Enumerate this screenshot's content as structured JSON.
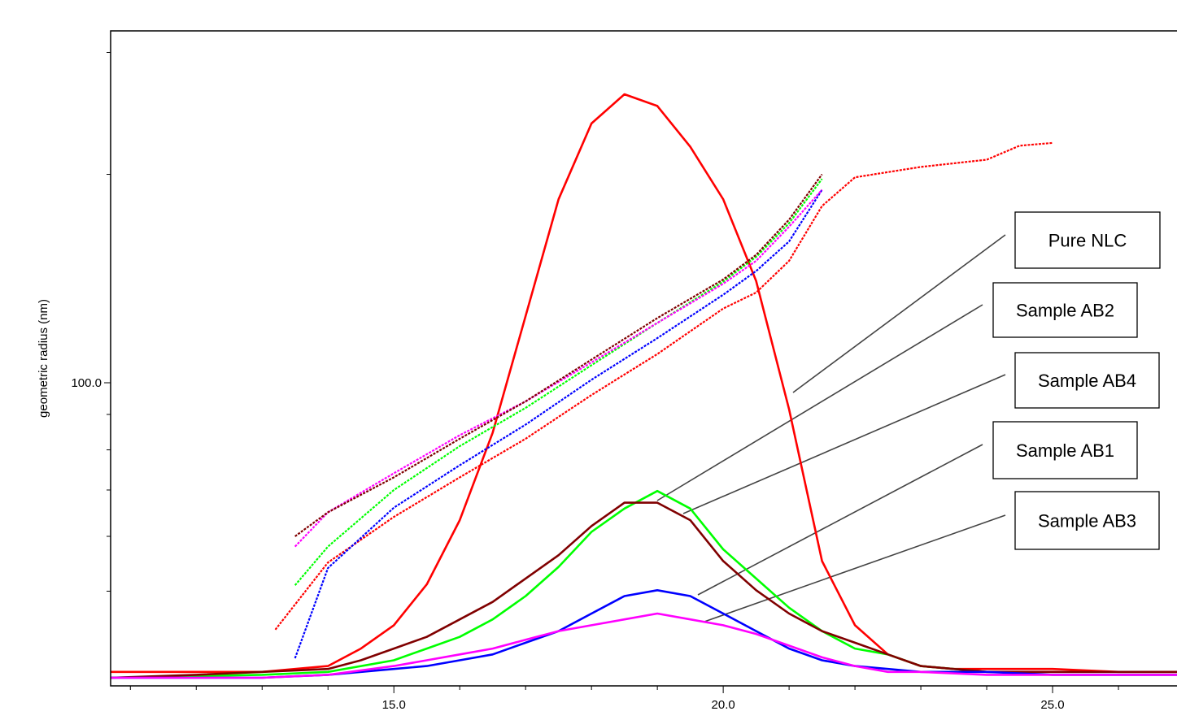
{
  "chart_data": {
    "type": "line",
    "title": "",
    "xlabel": "",
    "ylabel": "geometric radius (nm)",
    "xlim": [
      10.7,
      27.0
    ],
    "x_ticks": [
      {
        "value": 15.0,
        "label": "15.0"
      },
      {
        "value": 20.0,
        "label": "20.0"
      },
      {
        "value": 25.0,
        "label": "25.0"
      }
    ],
    "y_ticks": [
      {
        "value": 100.0,
        "label": "100.0"
      }
    ],
    "y_scale": "log",
    "grid": false,
    "legend": [
      {
        "label": "Pure NLC"
      },
      {
        "label": "Sample AB2"
      },
      {
        "label": "Sample AB4"
      },
      {
        "label": "Sample AB1"
      },
      {
        "label": "Sample AB3"
      }
    ],
    "series": [
      {
        "kind": "signal",
        "color": "#ff0000",
        "x": [
          10.7,
          13.0,
          14.0,
          14.5,
          15.0,
          15.5,
          16.0,
          16.5,
          17.0,
          17.5,
          18.0,
          18.5,
          19.0,
          19.5,
          20.0,
          20.5,
          21.0,
          21.5,
          22.0,
          22.5,
          23.0,
          23.5,
          24.0,
          25.0,
          26.0,
          27.0
        ],
        "y": [
          0.01,
          0.01,
          0.02,
          0.05,
          0.09,
          0.16,
          0.27,
          0.42,
          0.62,
          0.82,
          0.95,
          1.0,
          0.98,
          0.91,
          0.82,
          0.68,
          0.46,
          0.2,
          0.09,
          0.04,
          0.02,
          0.015,
          0.015,
          0.015,
          0.01,
          0.01
        ]
      },
      {
        "kind": "signal",
        "color": "#00ff00",
        "x": [
          10.7,
          13.0,
          14.0,
          15.0,
          15.5,
          16.0,
          16.5,
          17.0,
          17.5,
          18.0,
          18.5,
          19.0,
          19.5,
          20.0,
          20.5,
          21.0,
          21.5,
          22.0,
          22.5,
          23.0,
          24.0,
          25.0,
          27.0
        ],
        "y": [
          0.0,
          0.005,
          0.01,
          0.03,
          0.05,
          0.07,
          0.1,
          0.14,
          0.19,
          0.25,
          0.29,
          0.32,
          0.29,
          0.22,
          0.17,
          0.12,
          0.08,
          0.05,
          0.04,
          0.02,
          0.01,
          0.01,
          0.01
        ]
      },
      {
        "kind": "signal",
        "color": "#800000",
        "x": [
          10.7,
          12.0,
          13.0,
          14.0,
          14.5,
          15.0,
          15.5,
          16.0,
          16.5,
          17.0,
          17.5,
          18.0,
          18.5,
          19.0,
          19.5,
          20.0,
          20.5,
          21.0,
          21.5,
          22.0,
          22.5,
          23.0,
          24.0,
          25.0,
          27.0
        ],
        "y": [
          0.0,
          0.005,
          0.01,
          0.015,
          0.03,
          0.05,
          0.07,
          0.1,
          0.13,
          0.17,
          0.21,
          0.26,
          0.3,
          0.3,
          0.27,
          0.2,
          0.15,
          0.11,
          0.08,
          0.06,
          0.04,
          0.02,
          0.01,
          0.01,
          0.01
        ]
      },
      {
        "kind": "signal",
        "color": "#0000ff",
        "x": [
          10.7,
          13.0,
          14.0,
          15.0,
          15.5,
          16.0,
          16.5,
          17.0,
          17.5,
          18.0,
          18.5,
          19.0,
          19.5,
          20.0,
          20.5,
          21.0,
          21.5,
          22.0,
          22.5,
          23.0,
          24.0,
          25.0,
          27.0
        ],
        "y": [
          0.0,
          0.0,
          0.005,
          0.015,
          0.02,
          0.03,
          0.04,
          0.06,
          0.08,
          0.11,
          0.14,
          0.15,
          0.14,
          0.11,
          0.08,
          0.05,
          0.03,
          0.02,
          0.015,
          0.01,
          0.01,
          0.005,
          0.005
        ]
      },
      {
        "kind": "signal",
        "color": "#ff00ff",
        "x": [
          10.7,
          13.0,
          14.0,
          15.0,
          15.5,
          16.0,
          16.5,
          17.0,
          17.5,
          18.0,
          18.5,
          19.0,
          19.5,
          20.0,
          20.5,
          21.0,
          21.5,
          22.0,
          22.5,
          23.0,
          24.0,
          27.0
        ],
        "y": [
          0.0,
          0.0,
          0.005,
          0.02,
          0.03,
          0.04,
          0.05,
          0.065,
          0.08,
          0.09,
          0.1,
          0.11,
          0.1,
          0.09,
          0.075,
          0.055,
          0.035,
          0.02,
          0.01,
          0.01,
          0.005,
          0.005
        ]
      },
      {
        "kind": "radius",
        "color": "#ff0000",
        "x": [
          13.2,
          14.0,
          15.0,
          16.0,
          17.0,
          18.0,
          19.0,
          20.0,
          20.5,
          21.0,
          21.5,
          22.0,
          23.0,
          24.0,
          24.5,
          25.0
        ],
        "y": [
          44,
          55,
          64,
          73,
          83,
          96,
          110,
          128,
          135,
          150,
          180,
          198,
          205,
          210,
          220,
          222
        ]
      },
      {
        "kind": "radius",
        "color": "#0000ff",
        "x": [
          13.5,
          14.0,
          15.0,
          16.0,
          17.0,
          18.0,
          19.0,
          20.0,
          20.5,
          21.0,
          21.5
        ],
        "y": [
          40,
          54,
          66,
          76,
          87,
          101,
          116,
          134,
          145,
          160,
          190
        ]
      },
      {
        "kind": "radius",
        "color": "#00ff00",
        "x": [
          13.5,
          14.0,
          15.0,
          16.0,
          17.0,
          18.0,
          19.0,
          20.0,
          20.5,
          21.0,
          21.5
        ],
        "y": [
          51,
          58,
          70,
          81,
          92,
          106,
          122,
          140,
          152,
          170,
          197
        ]
      },
      {
        "kind": "radius",
        "color": "#ff00ff",
        "x": [
          13.5,
          14.0,
          15.0,
          16.0,
          17.0,
          18.0,
          19.0,
          20.0,
          20.5,
          21.0,
          21.5
        ],
        "y": [
          58,
          65,
          74,
          84,
          94,
          107,
          122,
          139,
          150,
          168,
          190
        ]
      },
      {
        "kind": "radius",
        "color": "#800000",
        "x": [
          13.5,
          14.0,
          15.0,
          16.0,
          17.0,
          18.0,
          19.0,
          20.0,
          20.5,
          21.0,
          21.5
        ],
        "y": [
          60,
          65,
          73,
          83,
          94,
          108,
          124,
          141,
          153,
          172,
          200
        ]
      }
    ]
  }
}
